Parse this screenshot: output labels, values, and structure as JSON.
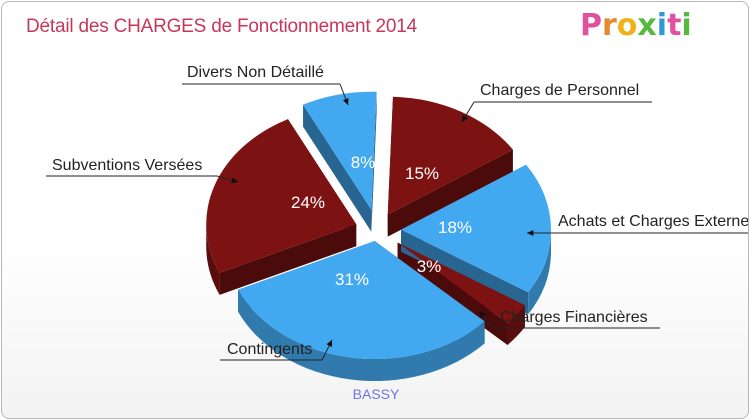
{
  "chart_data": {
    "type": "pie",
    "title": "Détail des CHARGES de Fonctionnement 2014",
    "subtitle": "BASSY",
    "slices": [
      {
        "label": "Charges de Personnel",
        "value": 15,
        "pct_label": "15%",
        "color": "#7d1212"
      },
      {
        "label": "Achats et Charges Externes",
        "value": 18,
        "pct_label": "18%",
        "color": "#42a9f1"
      },
      {
        "label": "Charges Financières",
        "value": 3,
        "pct_label": "3%",
        "color": "#7d1212"
      },
      {
        "label": "Contingents",
        "value": 31,
        "pct_label": "31%",
        "color": "#42a9f1"
      },
      {
        "label": "Subventions Versées",
        "value": 24,
        "pct_label": "24%",
        "color": "#7d1212"
      },
      {
        "label": "Divers Non Détaillé",
        "value": 8,
        "pct_label": "8%",
        "color": "#42a9f1"
      }
    ]
  },
  "logo": {
    "letters": [
      "P",
      "r",
      "o",
      "x",
      "i",
      "t",
      "i"
    ],
    "colors": [
      "#e0529d",
      "#e68a2e",
      "#f0b21a",
      "#58b83f",
      "#2d9ad6",
      "#e0529d",
      "#58b83f"
    ]
  },
  "colors": {
    "title": "#c8365a",
    "dark": "#7d1212",
    "light": "#42a9f1"
  }
}
